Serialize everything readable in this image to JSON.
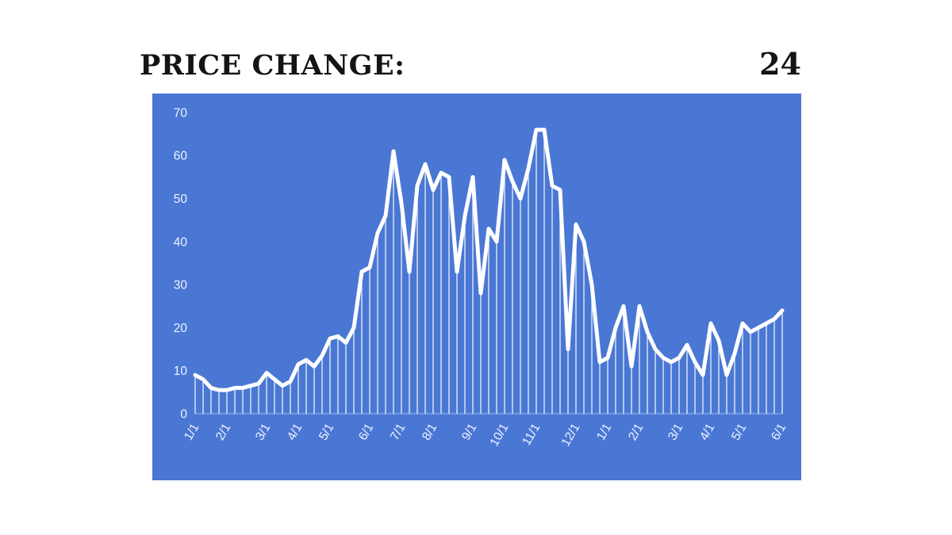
{
  "title": "PRICE CHANGE:",
  "current_value": "24",
  "chart_data": {
    "type": "line",
    "title": "PRICE CHANGE:",
    "subtitle": "",
    "xlabel": "",
    "ylabel": "",
    "grid": false,
    "legend": false,
    "ylim": [
      0,
      70
    ],
    "y_ticks": [
      0,
      10,
      20,
      30,
      40,
      50,
      60,
      70
    ],
    "x_ticks": [
      {
        "label": "1/1",
        "i": 0
      },
      {
        "label": "2/1",
        "i": 4
      },
      {
        "label": "3/1",
        "i": 9
      },
      {
        "label": "4/1",
        "i": 13
      },
      {
        "label": "5/1",
        "i": 17
      },
      {
        "label": "6/1",
        "i": 22
      },
      {
        "label": "7/1",
        "i": 26
      },
      {
        "label": "8/1",
        "i": 30
      },
      {
        "label": "9/1",
        "i": 35
      },
      {
        "label": "10/1",
        "i": 39
      },
      {
        "label": "11/1",
        "i": 43
      },
      {
        "label": "12/1",
        "i": 48
      },
      {
        "label": "1/1",
        "i": 52
      },
      {
        "label": "2/1",
        "i": 56
      },
      {
        "label": "3/1",
        "i": 61
      },
      {
        "label": "4/1",
        "i": 65
      },
      {
        "label": "5/1",
        "i": 69
      },
      {
        "label": "6/1",
        "i": 74
      }
    ],
    "values": [
      9,
      8,
      6,
      5.5,
      5.5,
      6,
      6,
      6.5,
      7,
      9.5,
      8,
      6.5,
      7.5,
      11.5,
      12.5,
      11,
      13.5,
      17.5,
      18,
      16.5,
      20,
      33,
      34,
      42,
      46,
      61,
      49,
      33,
      53,
      58,
      52,
      56,
      55,
      33,
      46,
      55,
      28,
      43,
      40,
      59,
      54,
      50,
      57,
      66,
      66,
      53,
      52,
      15,
      44,
      40,
      30,
      12,
      13,
      20,
      25,
      11,
      25,
      19,
      15,
      13,
      12,
      13,
      16,
      12,
      9,
      21,
      17,
      9,
      14,
      21,
      19,
      20,
      21,
      22,
      24
    ],
    "style_note": "thick white line with thin white vertical drop lines to baseline on solid blue panel",
    "colors": {
      "page_bg": "#ffffff",
      "panel_bg": "#4a77d4",
      "line": "#ffffff",
      "drop_lines": "#ffffff",
      "axis_text": "#f0f4ff",
      "title_text": "#141414"
    }
  }
}
